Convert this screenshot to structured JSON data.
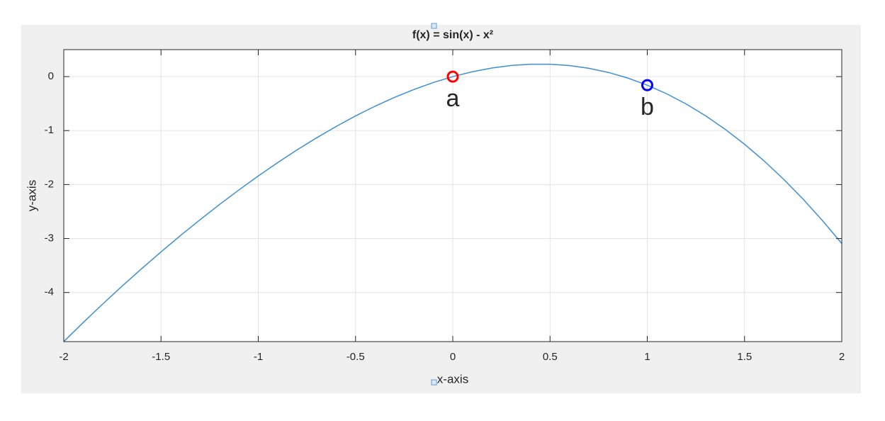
{
  "chart_data": {
    "type": "line",
    "title": "f(x) = sin(x) - x²",
    "xlabel": "x-axis",
    "ylabel": "y-axis",
    "x": [
      -2,
      -1.9,
      -1.8,
      -1.7,
      -1.6,
      -1.5,
      -1.4,
      -1.3,
      -1.2,
      -1.1,
      -1,
      -0.9,
      -0.8,
      -0.7,
      -0.6,
      -0.5,
      -0.4,
      -0.3,
      -0.2,
      -0.1,
      0,
      0.1,
      0.2,
      0.3,
      0.4,
      0.5,
      0.6,
      0.7,
      0.8,
      0.9,
      1,
      1.1,
      1.2,
      1.3,
      1.4,
      1.5,
      1.6,
      1.7,
      1.8,
      1.9,
      2
    ],
    "series": [
      {
        "color": "#3d8fd1",
        "values": [
          -4.909,
          -4.556,
          -4.214,
          -3.882,
          -3.56,
          -3.248,
          -2.945,
          -2.654,
          -2.372,
          -2.101,
          -1.841,
          -1.593,
          -1.357,
          -1.134,
          -0.925,
          -0.729,
          -0.549,
          -0.386,
          -0.239,
          -0.11,
          0,
          0.09,
          0.159,
          0.206,
          0.229,
          0.229,
          0.205,
          0.154,
          0.077,
          -0.027,
          -0.159,
          -0.319,
          -0.508,
          -0.726,
          -0.975,
          -1.253,
          -1.56,
          -1.898,
          -2.266,
          -2.664,
          -3.091
        ]
      }
    ],
    "points": [
      {
        "label": "a",
        "x": 0,
        "y": 0,
        "color": "#ff0000"
      },
      {
        "label": "b",
        "x": 1,
        "y": -0.159,
        "color": "#0000ff"
      }
    ],
    "xlim": [
      -2,
      2
    ],
    "ylim": [
      -4.91,
      0.5
    ],
    "xticks": [
      -2,
      -1.5,
      -1,
      -0.5,
      0,
      0.5,
      1,
      1.5,
      2
    ],
    "yticks": [
      -4,
      -3,
      -2,
      -1,
      0
    ],
    "grid": true
  }
}
